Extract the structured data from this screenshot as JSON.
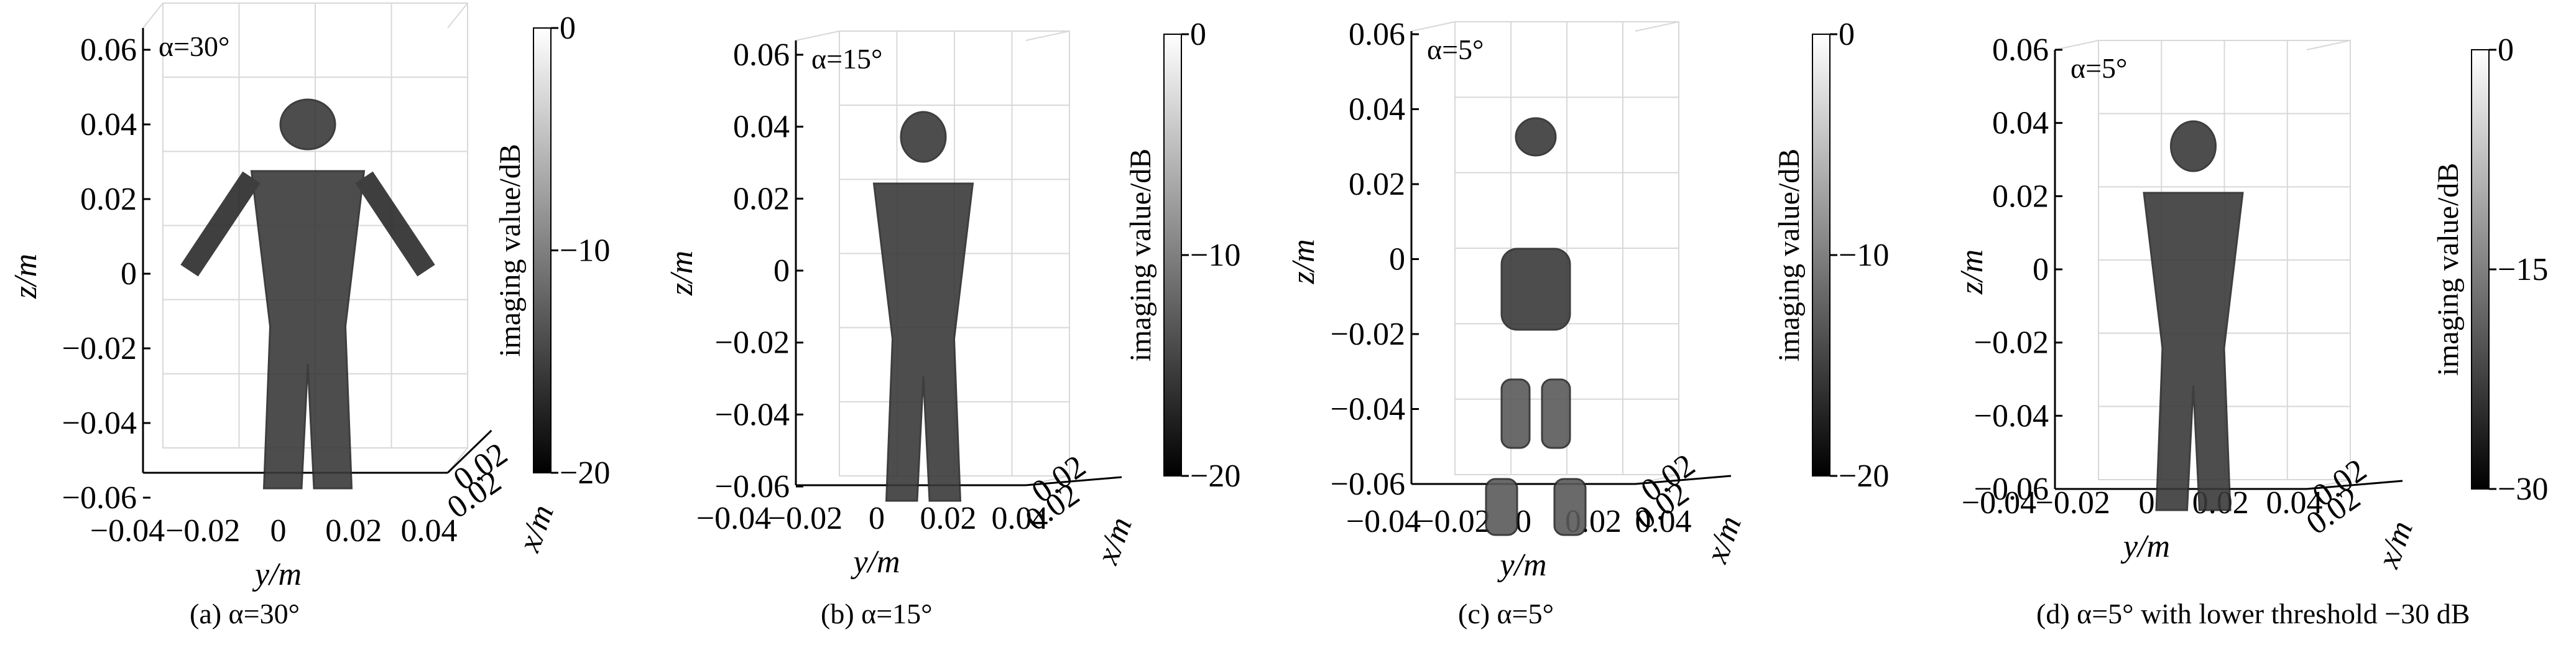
{
  "figure": {
    "panels": [
      {
        "id": "a",
        "inplot_label": "α=30°",
        "caption": "(a)  α=30°",
        "colorbar": {
          "label": "imaging value/dB",
          "ticks": [
            "0",
            "−10",
            "−20"
          ],
          "min_db": -20,
          "max_db": 0
        },
        "z_axis": {
          "label": "z/m",
          "ticks": [
            "0.06",
            "0.04",
            "0.02",
            "0",
            "−0.02",
            "−0.04",
            "−0.06"
          ]
        },
        "y_axis": {
          "label": "y/m",
          "ticks": [
            "−0.04",
            "−0.02",
            "0",
            "0.02",
            "0.04"
          ]
        },
        "x_axis": {
          "label": "x/m",
          "ticks": [
            "0.02",
            "0.02"
          ]
        }
      },
      {
        "id": "b",
        "inplot_label": "α=15°",
        "caption": "(b)  α=15°",
        "colorbar": {
          "label": "imaging value/dB",
          "ticks": [
            "0",
            "−10",
            "−20"
          ],
          "min_db": -20,
          "max_db": 0
        },
        "z_axis": {
          "label": "z/m",
          "ticks": [
            "0.06",
            "0.04",
            "0.02",
            "0",
            "−0.02",
            "−0.04",
            "−0.06"
          ]
        },
        "y_axis": {
          "label": "y/m",
          "ticks": [
            "−0.04",
            "−0.02",
            "0",
            "0.02",
            "0.04"
          ]
        },
        "x_axis": {
          "label": "x/m",
          "ticks": [
            "0.02",
            "0.02"
          ]
        }
      },
      {
        "id": "c",
        "inplot_label": "α=5°",
        "caption": "(c)  α=5°",
        "colorbar": {
          "label": "imaging value/dB",
          "ticks": [
            "0",
            "−10",
            "−20"
          ],
          "min_db": -20,
          "max_db": 0
        },
        "z_axis": {
          "label": "z/m",
          "ticks": [
            "0.06",
            "0.04",
            "0.02",
            "0",
            "−0.02",
            "−0.04",
            "−0.06"
          ]
        },
        "y_axis": {
          "label": "y/m",
          "ticks": [
            "−0.04",
            "−0.02",
            "0",
            "0.02",
            "0.04"
          ]
        },
        "x_axis": {
          "label": "x/m",
          "ticks": [
            "0.02",
            "0.02"
          ]
        }
      },
      {
        "id": "d",
        "inplot_label": "α=5°",
        "caption": "(d)  α=5° with lower threshold −30 dB",
        "colorbar": {
          "label": "imaging value/dB",
          "ticks": [
            "0",
            "−15",
            "−30"
          ],
          "min_db": -30,
          "max_db": 0
        },
        "z_axis": {
          "label": "z/m",
          "ticks": [
            "0.06",
            "0.04",
            "0.02",
            "0",
            "−0.02",
            "−0.04",
            "−0.06"
          ]
        },
        "y_axis": {
          "label": "y/m",
          "ticks": [
            "−0.04",
            "−0.02",
            "0",
            "0.02",
            "0.04"
          ]
        },
        "x_axis": {
          "label": "x/m",
          "ticks": [
            "0.02",
            "0.02"
          ]
        }
      }
    ],
    "colors": {
      "image_dark": "#3a3a3a",
      "image_mid": "#5a5a5a",
      "image_light": "#8a8a8a",
      "grid": "#d8d8d8",
      "axis": "#000000"
    }
  }
}
